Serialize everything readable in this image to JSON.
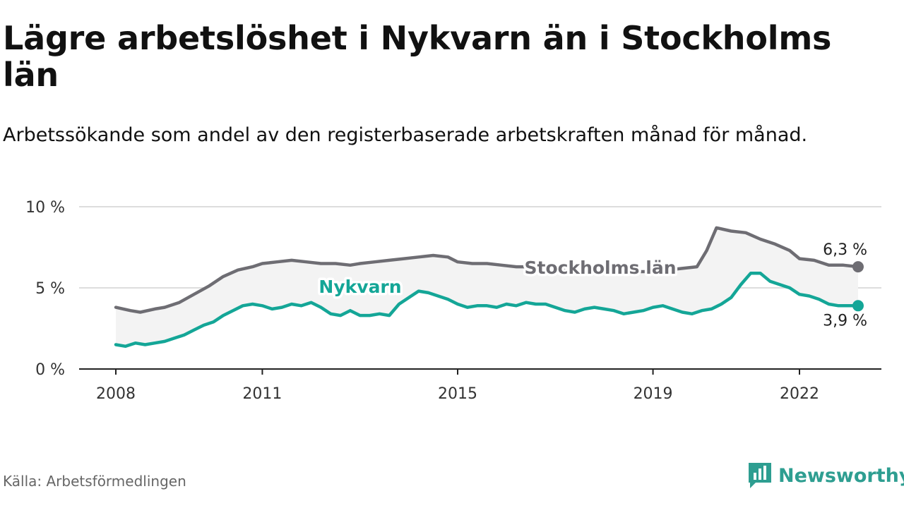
{
  "title": "Lägre arbetslöshet i Nykvarn än i Stockholms län",
  "subtitle": "Arbetssökande som andel av den registerbaserade arbetskraften månad för månad.",
  "source": "Källa: Arbetsförmedlingen",
  "brand": "Newsworthy",
  "colors": {
    "stockholm": "#6e6d73",
    "nykvarn": "#14a697",
    "grid": "#dddddd",
    "fill": "#f3f3f3",
    "axis": "#222222"
  },
  "chart_data": {
    "type": "line",
    "ylim": [
      0,
      10
    ],
    "yticks": [
      0,
      5,
      10
    ],
    "ytick_labels": [
      "0 %",
      "5 %",
      "10 %"
    ],
    "xlim": [
      2008,
      2023.5
    ],
    "xticks": [
      2008,
      2011,
      2015,
      2019,
      2022
    ],
    "xtick_labels": [
      "2008",
      "2011",
      "2015",
      "2019",
      "2022"
    ],
    "series": [
      {
        "name": "Stockholms län",
        "label": "Stockholms län",
        "end_label": "6,3 %",
        "points": [
          [
            2008.0,
            3.8
          ],
          [
            2008.3,
            3.6
          ],
          [
            2008.5,
            3.5
          ],
          [
            2008.8,
            3.7
          ],
          [
            2009.0,
            3.8
          ],
          [
            2009.3,
            4.1
          ],
          [
            2009.6,
            4.6
          ],
          [
            2009.9,
            5.1
          ],
          [
            2010.2,
            5.7
          ],
          [
            2010.5,
            6.1
          ],
          [
            2010.8,
            6.3
          ],
          [
            2011.0,
            6.5
          ],
          [
            2011.3,
            6.6
          ],
          [
            2011.6,
            6.7
          ],
          [
            2011.9,
            6.6
          ],
          [
            2012.2,
            6.5
          ],
          [
            2012.5,
            6.5
          ],
          [
            2012.8,
            6.4
          ],
          [
            2013.0,
            6.5
          ],
          [
            2013.3,
            6.6
          ],
          [
            2013.6,
            6.7
          ],
          [
            2013.9,
            6.8
          ],
          [
            2014.2,
            6.9
          ],
          [
            2014.5,
            7.0
          ],
          [
            2014.8,
            6.9
          ],
          [
            2015.0,
            6.6
          ],
          [
            2015.3,
            6.5
          ],
          [
            2015.6,
            6.5
          ],
          [
            2015.9,
            6.4
          ],
          [
            2016.2,
            6.3
          ],
          [
            2016.5,
            6.3
          ],
          [
            2016.8,
            6.2
          ],
          [
            2017.0,
            6.2
          ],
          [
            2017.3,
            6.1
          ],
          [
            2017.6,
            6.0
          ],
          [
            2017.9,
            6.0
          ],
          [
            2018.2,
            6.0
          ],
          [
            2018.5,
            6.0
          ],
          [
            2018.8,
            6.0
          ],
          [
            2019.0,
            6.0
          ],
          [
            2019.3,
            6.1
          ],
          [
            2019.6,
            6.2
          ],
          [
            2019.9,
            6.3
          ],
          [
            2020.1,
            7.3
          ],
          [
            2020.3,
            8.7
          ],
          [
            2020.6,
            8.5
          ],
          [
            2020.9,
            8.4
          ],
          [
            2021.2,
            8.0
          ],
          [
            2021.5,
            7.7
          ],
          [
            2021.8,
            7.3
          ],
          [
            2022.0,
            6.8
          ],
          [
            2022.3,
            6.7
          ],
          [
            2022.6,
            6.4
          ],
          [
            2022.9,
            6.4
          ],
          [
            2023.2,
            6.3
          ]
        ]
      },
      {
        "name": "Nykvarn",
        "label": "Nykvarn",
        "end_label": "3,9 %",
        "points": [
          [
            2008.0,
            1.5
          ],
          [
            2008.2,
            1.4
          ],
          [
            2008.4,
            1.6
          ],
          [
            2008.6,
            1.5
          ],
          [
            2008.8,
            1.6
          ],
          [
            2009.0,
            1.7
          ],
          [
            2009.2,
            1.9
          ],
          [
            2009.4,
            2.1
          ],
          [
            2009.6,
            2.4
          ],
          [
            2009.8,
            2.7
          ],
          [
            2010.0,
            2.9
          ],
          [
            2010.2,
            3.3
          ],
          [
            2010.4,
            3.6
          ],
          [
            2010.6,
            3.9
          ],
          [
            2010.8,
            4.0
          ],
          [
            2011.0,
            3.9
          ],
          [
            2011.2,
            3.7
          ],
          [
            2011.4,
            3.8
          ],
          [
            2011.6,
            4.0
          ],
          [
            2011.8,
            3.9
          ],
          [
            2012.0,
            4.1
          ],
          [
            2012.2,
            3.8
          ],
          [
            2012.4,
            3.4
          ],
          [
            2012.6,
            3.3
          ],
          [
            2012.8,
            3.6
          ],
          [
            2013.0,
            3.3
          ],
          [
            2013.2,
            3.3
          ],
          [
            2013.4,
            3.4
          ],
          [
            2013.6,
            3.3
          ],
          [
            2013.8,
            4.0
          ],
          [
            2014.0,
            4.4
          ],
          [
            2014.2,
            4.8
          ],
          [
            2014.4,
            4.7
          ],
          [
            2014.6,
            4.5
          ],
          [
            2014.8,
            4.3
          ],
          [
            2015.0,
            4.0
          ],
          [
            2015.2,
            3.8
          ],
          [
            2015.4,
            3.9
          ],
          [
            2015.6,
            3.9
          ],
          [
            2015.8,
            3.8
          ],
          [
            2016.0,
            4.0
          ],
          [
            2016.2,
            3.9
          ],
          [
            2016.4,
            4.1
          ],
          [
            2016.6,
            4.0
          ],
          [
            2016.8,
            4.0
          ],
          [
            2017.0,
            3.8
          ],
          [
            2017.2,
            3.6
          ],
          [
            2017.4,
            3.5
          ],
          [
            2017.6,
            3.7
          ],
          [
            2017.8,
            3.8
          ],
          [
            2018.0,
            3.7
          ],
          [
            2018.2,
            3.6
          ],
          [
            2018.4,
            3.4
          ],
          [
            2018.6,
            3.5
          ],
          [
            2018.8,
            3.6
          ],
          [
            2019.0,
            3.8
          ],
          [
            2019.2,
            3.9
          ],
          [
            2019.4,
            3.7
          ],
          [
            2019.6,
            3.5
          ],
          [
            2019.8,
            3.4
          ],
          [
            2020.0,
            3.6
          ],
          [
            2020.2,
            3.7
          ],
          [
            2020.4,
            4.0
          ],
          [
            2020.6,
            4.4
          ],
          [
            2020.8,
            5.2
          ],
          [
            2021.0,
            5.9
          ],
          [
            2021.2,
            5.9
          ],
          [
            2021.4,
            5.4
          ],
          [
            2021.6,
            5.2
          ],
          [
            2021.8,
            5.0
          ],
          [
            2022.0,
            4.6
          ],
          [
            2022.2,
            4.5
          ],
          [
            2022.4,
            4.3
          ],
          [
            2022.6,
            4.0
          ],
          [
            2022.8,
            3.9
          ],
          [
            2023.0,
            3.9
          ],
          [
            2023.2,
            3.9
          ]
        ]
      }
    ]
  }
}
